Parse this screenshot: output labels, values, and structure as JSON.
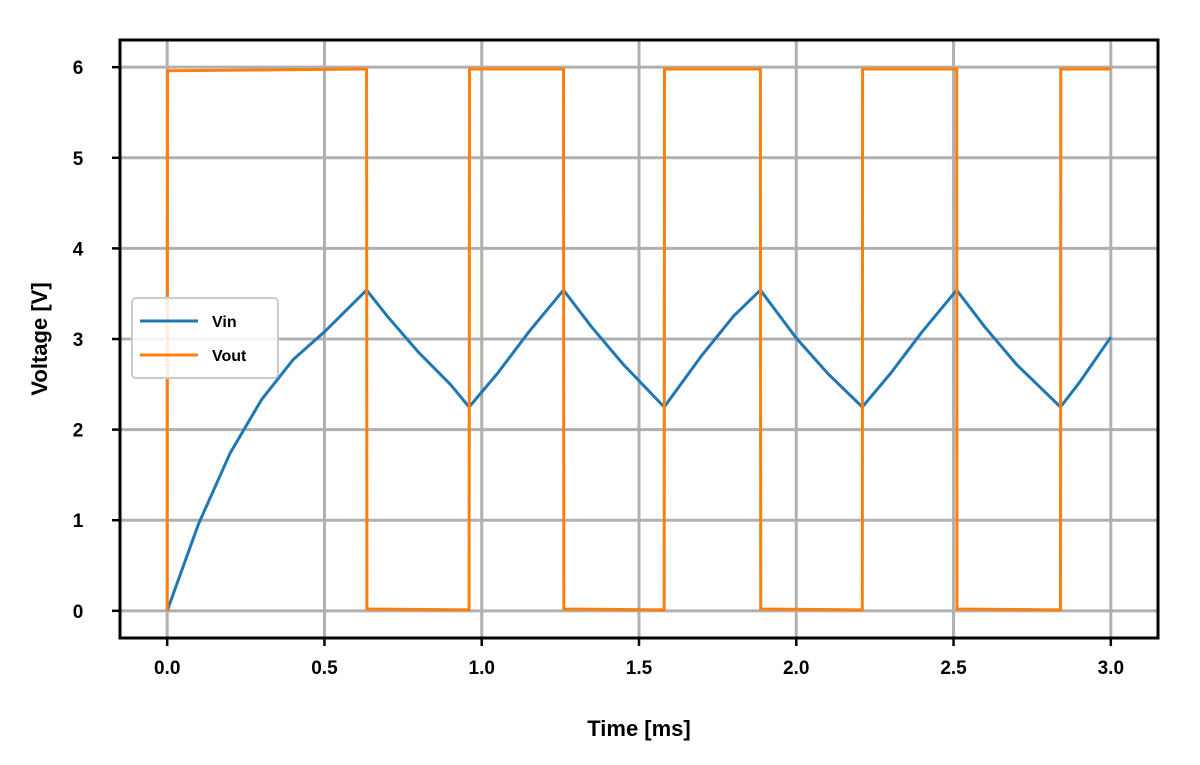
{
  "chart_data": {
    "type": "line",
    "xlabel": "Time [ms]",
    "ylabel": "Voltage [V]",
    "xlim": [
      -0.15,
      3.15
    ],
    "ylim": [
      -0.3,
      6.3
    ],
    "x_ticks": [
      0.0,
      0.5,
      1.0,
      1.5,
      2.0,
      2.5,
      3.0
    ],
    "x_tick_labels": [
      "0.0",
      "0.5",
      "1.0",
      "1.5",
      "2.0",
      "2.5",
      "3.0"
    ],
    "y_ticks": [
      0,
      1,
      2,
      3,
      4,
      5,
      6
    ],
    "y_tick_labels": [
      "0",
      "1",
      "2",
      "3",
      "4",
      "5",
      "6"
    ],
    "grid": true,
    "legend_position": "center-left",
    "series": [
      {
        "name": "Vin",
        "color": "#1f77b4",
        "x": [
          0.0,
          0.1,
          0.2,
          0.3,
          0.4,
          0.5,
          0.634,
          0.7,
          0.8,
          0.9,
          0.96,
          1.05,
          1.15,
          1.26,
          1.35,
          1.45,
          1.58,
          1.7,
          1.8,
          1.886,
          2.0,
          2.1,
          2.21,
          2.3,
          2.4,
          2.51,
          2.6,
          2.7,
          2.84,
          2.9,
          3.0
        ],
        "y": [
          0.0,
          0.96,
          1.74,
          2.33,
          2.77,
          3.08,
          3.54,
          3.25,
          2.85,
          2.5,
          2.25,
          2.62,
          3.08,
          3.54,
          3.13,
          2.72,
          2.25,
          2.82,
          3.25,
          3.54,
          3.01,
          2.62,
          2.25,
          2.62,
          3.08,
          3.54,
          3.13,
          2.72,
          2.25,
          2.52,
          3.02
        ]
      },
      {
        "name": "Vout",
        "color": "#ff7f0e",
        "x": [
          0.0,
          0.001,
          0.634,
          0.635,
          0.96,
          0.961,
          1.26,
          1.261,
          1.58,
          1.581,
          1.886,
          1.887,
          2.21,
          2.211,
          2.51,
          2.511,
          2.84,
          2.841,
          3.0
        ],
        "y": [
          0.0,
          5.96,
          5.98,
          0.02,
          0.01,
          5.98,
          5.98,
          0.02,
          0.01,
          5.98,
          5.98,
          0.02,
          0.01,
          5.98,
          5.98,
          0.02,
          0.01,
          5.98,
          5.98
        ]
      }
    ]
  }
}
